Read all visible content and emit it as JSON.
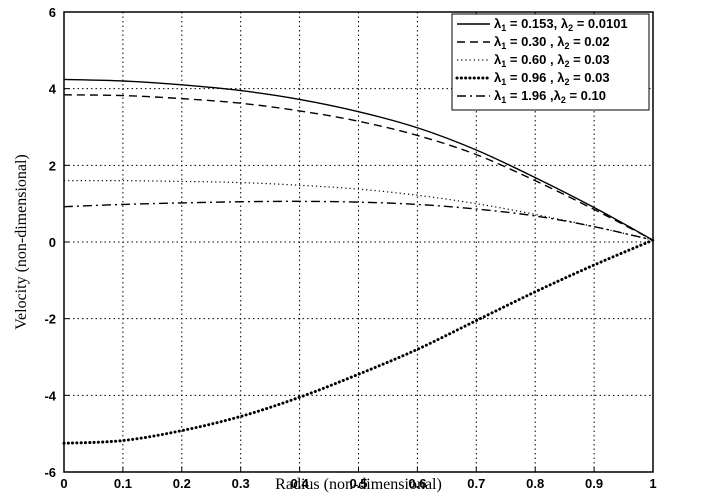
{
  "chart_data": {
    "type": "line",
    "title": "",
    "xlabel": "Radius (non-dimensional)",
    "ylabel": "Velocity (non-dimensional)",
    "xlim": [
      0,
      1
    ],
    "ylim": [
      -6,
      6
    ],
    "xticks": [
      "0",
      "0.1",
      "0.2",
      "0.3",
      "0.4",
      "0.5",
      "0.6",
      "0.7",
      "0.8",
      "0.9",
      "1"
    ],
    "yticks": [
      "6",
      "4",
      "2",
      "0",
      "-2",
      "-4",
      "-6"
    ],
    "grid": true,
    "legend_position": "top-right",
    "x": [
      0,
      0.1,
      0.2,
      0.3,
      0.4,
      0.5,
      0.6,
      0.7,
      0.8,
      0.9,
      1.0
    ],
    "series": [
      {
        "lambda1": "0.153",
        "lambda2": "0.0101",
        "sep": ", ",
        "style": "solid",
        "values": [
          4.24,
          4.2,
          4.1,
          3.95,
          3.72,
          3.4,
          2.98,
          2.4,
          1.68,
          0.9,
          0.05
        ]
      },
      {
        "lambda1": "0.30",
        "lambda2": "0.02",
        "sep": " , ",
        "style": "dashed",
        "values": [
          3.84,
          3.82,
          3.74,
          3.62,
          3.42,
          3.15,
          2.78,
          2.28,
          1.6,
          0.85,
          0.05
        ]
      },
      {
        "lambda1": "0.60",
        "lambda2": "0.03",
        "sep": " , ",
        "style": "dotted",
        "values": [
          1.6,
          1.6,
          1.58,
          1.55,
          1.48,
          1.38,
          1.22,
          1.0,
          0.72,
          0.4,
          0.05
        ]
      },
      {
        "lambda1": "0.96",
        "lambda2": "0.03",
        "sep": " , ",
        "style": "heavy-dotted",
        "values": [
          -5.25,
          -5.18,
          -4.92,
          -4.55,
          -4.05,
          -3.45,
          -2.8,
          -2.05,
          -1.3,
          -0.6,
          0.05
        ]
      },
      {
        "lambda1": "1.96",
        "lambda2": "0.10",
        "sep": " ,",
        "style": "dash-dot",
        "values": [
          0.92,
          0.98,
          1.02,
          1.05,
          1.06,
          1.04,
          0.98,
          0.86,
          0.68,
          0.4,
          0.05
        ]
      }
    ]
  }
}
